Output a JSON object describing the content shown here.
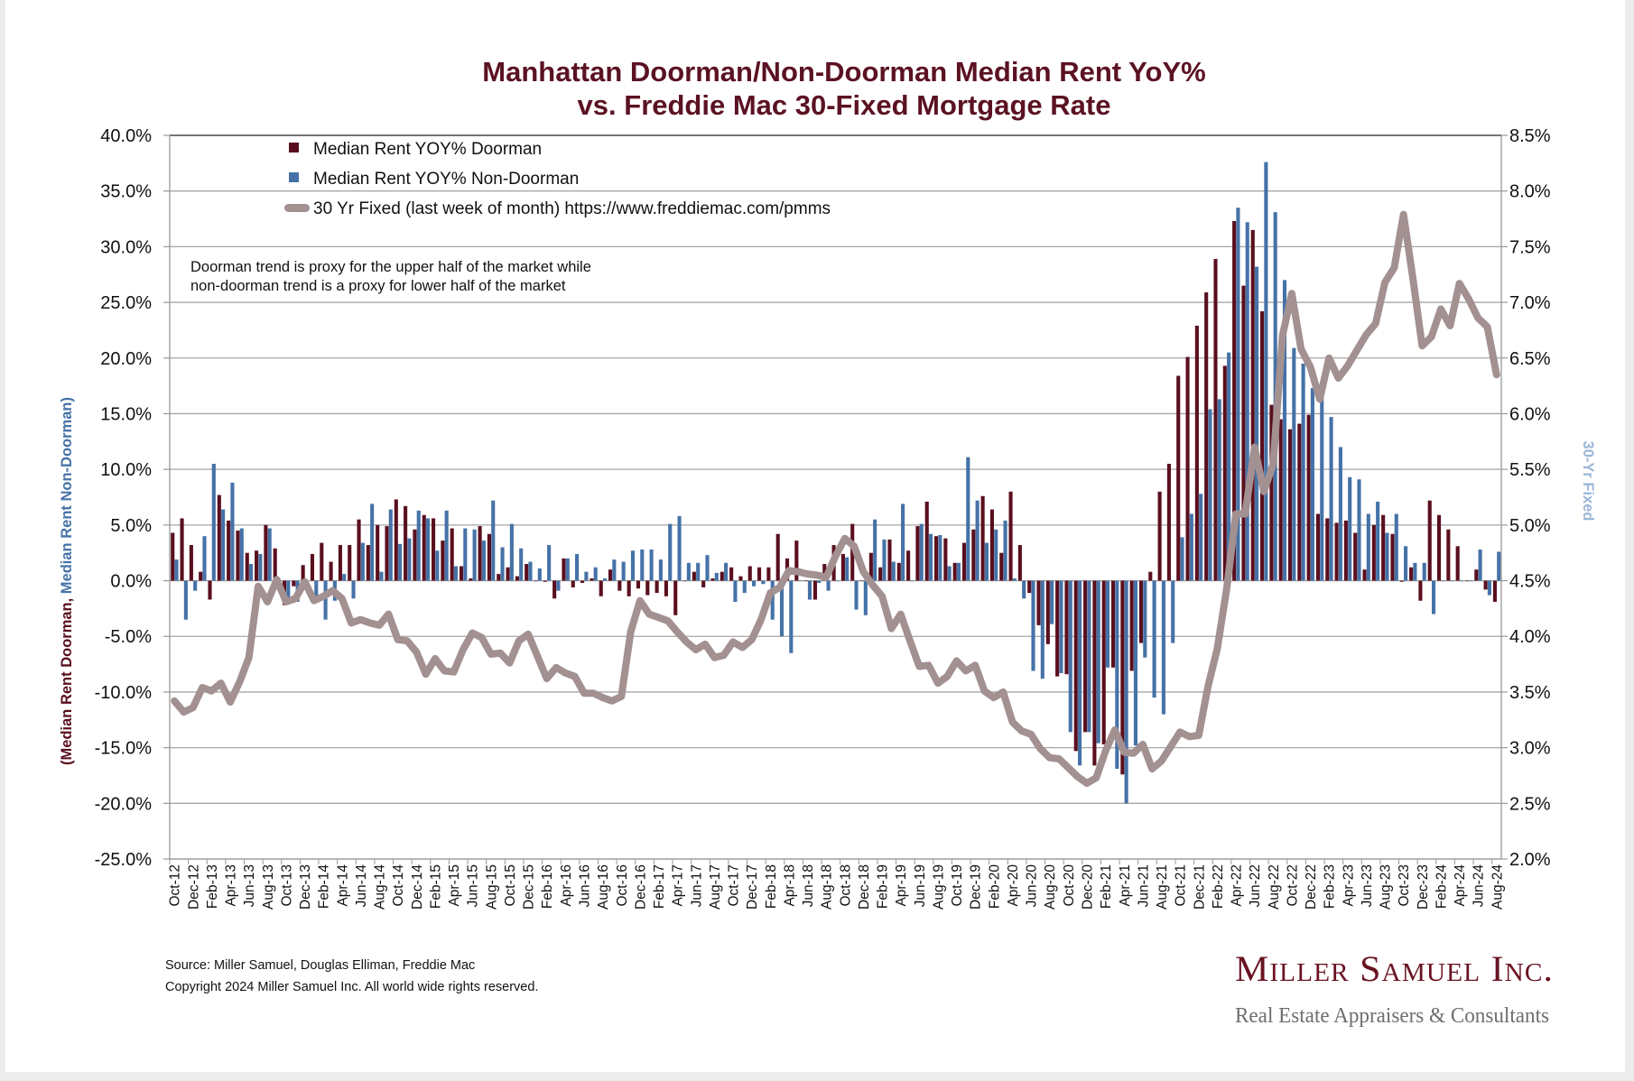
{
  "chart_data": {
    "type": "bar",
    "title": [
      "Manhattan Doorman/Non-Doorman Median Rent YoY%",
      "vs. Freddie Mac 30-Fixed Mortgage Rate"
    ],
    "ylabel_parts": [
      "(Median Rent Doorman, ",
      "Median Rent Non-Doorman)"
    ],
    "y2label": "30-Yr Fixed",
    "ylim": [
      -25,
      40
    ],
    "y2lim": [
      2.0,
      8.5
    ],
    "y_tick_labels": [
      "-25.0%",
      "-20.0%",
      "-15.0%",
      "-10.0%",
      "-5.0%",
      "0.0%",
      "5.0%",
      "10.0%",
      "15.0%",
      "20.0%",
      "25.0%",
      "30.0%",
      "35.0%",
      "40.0%"
    ],
    "y2_tick_labels": [
      "2.0%",
      "2.5%",
      "3.0%",
      "3.5%",
      "4.0%",
      "4.5%",
      "5.0%",
      "5.5%",
      "6.0%",
      "6.5%",
      "7.0%",
      "7.5%",
      "8.0%",
      "8.5%"
    ],
    "grid": true,
    "legend_position": "top-left",
    "tick_every": 2,
    "x_tick_labels": [
      "Oct-12",
      "Dec-12",
      "Feb-13",
      "Apr-13",
      "Jun-13",
      "Aug-13",
      "Oct-13",
      "Dec-13",
      "Feb-14",
      "Apr-14",
      "Jun-14",
      "Aug-14",
      "Oct-14",
      "Dec-14",
      "Feb-15",
      "Apr-15",
      "Jun-15",
      "Aug-15",
      "Oct-15",
      "Dec-15",
      "Feb-16",
      "Apr-16",
      "Jun-16",
      "Aug-16",
      "Oct-16",
      "Dec-16",
      "Feb-17",
      "Apr-17",
      "Jun-17",
      "Aug-17",
      "Oct-17",
      "Dec-17",
      "Feb-18",
      "Apr-18",
      "Jun-18",
      "Aug-18",
      "Oct-18",
      "Dec-18",
      "Feb-19",
      "Apr-19",
      "Jun-19",
      "Aug-19",
      "Oct-19",
      "Dec-19",
      "Feb-20",
      "Apr-20",
      "Jun-20",
      "Aug-20",
      "Oct-20",
      "Dec-20",
      "Feb-21",
      "Apr-21",
      "Jun-21",
      "Aug-21",
      "Oct-21",
      "Dec-21",
      "Feb-22",
      "Apr-22",
      "Jun-22",
      "Aug-22",
      "Oct-22",
      "Dec-22",
      "Feb-23",
      "Apr-23",
      "Jun-23",
      "Aug-23",
      "Oct-23",
      "Dec-23",
      "Feb-24",
      "Apr-24",
      "Jun-24",
      "Aug-24"
    ],
    "series": [
      {
        "name": "Median Rent YOY% Doorman",
        "type": "bar",
        "axis": "left",
        "color": "#5a0f1e",
        "values": [
          4.3,
          5.6,
          3.2,
          0.8,
          -1.7,
          7.7,
          5.4,
          4.5,
          2.5,
          2.7,
          5.0,
          2.9,
          -2.2,
          -0.5,
          1.4,
          2.4,
          3.4,
          1.7,
          3.2,
          3.2,
          5.5,
          3.2,
          5.0,
          4.9,
          7.3,
          6.7,
          4.6,
          5.9,
          5.6,
          3.6,
          4.7,
          1.3,
          0.2,
          4.9,
          4.2,
          0.6,
          1.2,
          0.4,
          1.5,
          0.0,
          -0.1,
          -1.6,
          2.0,
          -0.6,
          -0.2,
          0.2,
          -1.4,
          1.0,
          -0.9,
          -1.4,
          -0.7,
          -1.3,
          -1.1,
          -1.4,
          -3.1,
          0.0,
          0.8,
          -0.6,
          0.2,
          0.8,
          1.2,
          0.4,
          1.3,
          1.2,
          1.2,
          4.2,
          2.0,
          3.6,
          0.0,
          -1.7,
          1.5,
          3.2,
          2.4,
          5.1,
          0.0,
          2.5,
          1.2,
          3.7,
          1.6,
          2.7,
          4.9,
          7.1,
          4.0,
          3.8,
          1.6,
          3.4,
          4.6,
          7.6,
          6.4,
          2.5,
          8.0,
          3.2,
          -1.1,
          -4.0,
          -5.7,
          -8.6,
          -8.4,
          -15.3,
          -13.6,
          -16.6,
          -14.7,
          -7.8,
          -17.4,
          -8.1,
          -5.6,
          0.8,
          8.0,
          10.5,
          18.4,
          20.1,
          22.9,
          25.9,
          28.9,
          19.3,
          32.3,
          26.5,
          31.5,
          24.2,
          15.8,
          14.5,
          13.6,
          14.1,
          14.9,
          6.0,
          5.6,
          5.2,
          5.4,
          4.3,
          1.0,
          5.0,
          5.9,
          4.2,
          -0.1,
          1.2,
          -1.8,
          7.2,
          5.9,
          4.6,
          3.1,
          0.0,
          1.0,
          -0.8,
          -1.9
        ]
      },
      {
        "name": "Median Rent YOY% Non-Doorman",
        "type": "bar",
        "axis": "left",
        "color": "#4572a7",
        "values": [
          1.9,
          -3.5,
          -0.9,
          4.0,
          10.5,
          6.4,
          8.8,
          4.7,
          1.5,
          2.4,
          4.7,
          0.0,
          -1.9,
          -1.9,
          0.0,
          -1.9,
          -3.5,
          -1.8,
          0.6,
          -1.6,
          3.4,
          6.9,
          0.8,
          6.4,
          3.3,
          3.8,
          6.3,
          5.6,
          2.7,
          6.3,
          1.3,
          4.7,
          4.6,
          3.6,
          7.2,
          3.0,
          5.1,
          2.9,
          1.7,
          1.1,
          3.2,
          -0.9,
          2.0,
          2.4,
          0.8,
          1.2,
          0.2,
          1.9,
          1.7,
          2.7,
          2.8,
          2.8,
          1.9,
          5.1,
          5.8,
          1.6,
          1.6,
          2.3,
          0.7,
          1.6,
          -1.9,
          -1.1,
          -0.5,
          -0.3,
          -3.5,
          -5.0,
          -6.5,
          0.0,
          -1.7,
          -0.2,
          -0.9,
          0.0,
          2.1,
          -2.6,
          -3.1,
          5.5,
          3.7,
          1.7,
          6.9,
          0.0,
          5.1,
          4.2,
          4.1,
          1.3,
          1.6,
          11.1,
          7.2,
          3.4,
          4.6,
          5.4,
          0.2,
          -1.6,
          -8.1,
          -8.8,
          -3.9,
          -8.3,
          -13.6,
          -16.6,
          -13.6,
          -14.6,
          -7.8,
          -16.9,
          -20.0,
          -14.8,
          -6.9,
          -10.5,
          -12.0,
          -5.6,
          3.9,
          6.0,
          7.8,
          15.4,
          16.3,
          20.5,
          33.5,
          32.2,
          28.2,
          37.6,
          33.1,
          27.0,
          20.9,
          19.5,
          17.3,
          16.4,
          14.7,
          12.0,
          9.3,
          9.1,
          6.0,
          7.1,
          4.3,
          6.0,
          3.1,
          1.6,
          1.6,
          -3.0,
          0.0,
          0.0,
          0.0,
          0.0,
          2.8,
          -1.3,
          2.6
        ]
      },
      {
        "name": "30 Yr Fixed (last week of month) https://www.freddiemac.com/pmms",
        "type": "line",
        "axis": "right",
        "color": "#a39091",
        "values": [
          3.42,
          3.32,
          3.36,
          3.54,
          3.51,
          3.58,
          3.41,
          3.59,
          3.81,
          4.45,
          4.31,
          4.51,
          4.31,
          4.34,
          4.49,
          4.32,
          4.36,
          4.41,
          4.34,
          4.12,
          4.15,
          4.12,
          4.1,
          4.2,
          3.97,
          3.96,
          3.86,
          3.66,
          3.8,
          3.69,
          3.68,
          3.88,
          4.03,
          3.99,
          3.84,
          3.85,
          3.76,
          3.96,
          4.02,
          3.82,
          3.62,
          3.72,
          3.67,
          3.64,
          3.49,
          3.49,
          3.45,
          3.42,
          3.46,
          4.04,
          4.32,
          4.2,
          4.17,
          4.14,
          4.04,
          3.95,
          3.88,
          3.93,
          3.81,
          3.83,
          3.95,
          3.9,
          3.97,
          4.15,
          4.39,
          4.44,
          4.59,
          4.58,
          4.56,
          4.55,
          4.53,
          4.72,
          4.88,
          4.81,
          4.58,
          4.46,
          4.36,
          4.07,
          4.2,
          3.96,
          3.73,
          3.74,
          3.58,
          3.64,
          3.78,
          3.69,
          3.74,
          3.51,
          3.45,
          3.5,
          3.23,
          3.15,
          3.12,
          2.99,
          2.91,
          2.9,
          2.82,
          2.74,
          2.68,
          2.73,
          2.97,
          3.16,
          2.96,
          2.95,
          3.03,
          2.81,
          2.88,
          3.01,
          3.14,
          3.1,
          3.11,
          3.55,
          3.89,
          4.42,
          5.1,
          5.1,
          5.7,
          5.3,
          5.55,
          6.7,
          7.08,
          6.58,
          6.42,
          6.13,
          6.5,
          6.32,
          6.43,
          6.57,
          6.71,
          6.81,
          7.18,
          7.31,
          7.79,
          7.22,
          6.61,
          6.69,
          6.94,
          6.79,
          7.17,
          7.03,
          6.86,
          6.78,
          6.35
        ]
      }
    ],
    "annotation": [
      "Doorman trend is proxy for the upper half of the market while",
      "non-doorman trend is a proxy for lower half of the market"
    ]
  },
  "colors": {
    "title": "#5b1222",
    "doorman": "#5a0f1e",
    "non_doorman": "#4572a7",
    "rate": "#a39091",
    "y2label": "#9bb6d8"
  },
  "footer": {
    "source": "Source: Miller Samuel, Douglas Elliman, Freddie Mac",
    "copyright": "Copyright 2024 Miller Samuel Inc.  All world wide rights reserved."
  },
  "logo": {
    "name": "Miller Samuel Inc.",
    "tagline": "Real Estate Appraisers & Consultants"
  }
}
